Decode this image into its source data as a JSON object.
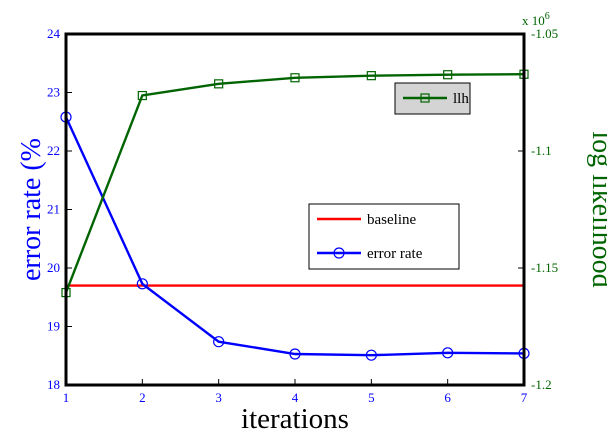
{
  "chart_data": {
    "type": "line",
    "xlabel": "iterations",
    "x": [
      1,
      2,
      3,
      4,
      5,
      6,
      7
    ],
    "xlim": [
      1,
      7
    ],
    "x_ticks": [
      "1",
      "2",
      "3",
      "4",
      "5",
      "6",
      "7"
    ],
    "y_left": {
      "label": "error rate (%",
      "lim": [
        18,
        24
      ],
      "ticks": [
        "18",
        "19",
        "20",
        "21",
        "22",
        "23",
        "24"
      ],
      "color": "#0000ff"
    },
    "y_right": {
      "label": "log likelihood",
      "lim": [
        -1.2,
        -1.05
      ],
      "ticks": [
        "-1.05",
        "-1.1",
        "-1.15",
        "-1.2"
      ],
      "tick_values": [
        -1.05,
        -1.1,
        -1.15,
        -1.2
      ],
      "exponent_label": "x 10",
      "exponent_power": "6",
      "color": "#006400"
    },
    "series": [
      {
        "name": "baseline",
        "axis": "left",
        "color": "#ff0000",
        "marker": "none",
        "values": [
          19.7,
          19.7,
          19.7,
          19.7,
          19.7,
          19.7,
          19.7
        ]
      },
      {
        "name": "error rate",
        "axis": "left",
        "color": "#0000ff",
        "marker": "circle",
        "values": [
          22.58,
          19.73,
          18.74,
          18.53,
          18.51,
          18.55,
          18.54
        ]
      },
      {
        "name": "llh",
        "axis": "right",
        "color": "#006400",
        "marker": "square",
        "values": [
          -1.1605,
          -1.0763,
          -1.0713,
          -1.0687,
          -1.0678,
          -1.0674,
          -1.0672
        ]
      }
    ],
    "legends": [
      {
        "entries": [
          "llh"
        ],
        "position": "top-right"
      },
      {
        "entries": [
          "baseline",
          "error rate"
        ],
        "position": "center-right"
      }
    ]
  }
}
